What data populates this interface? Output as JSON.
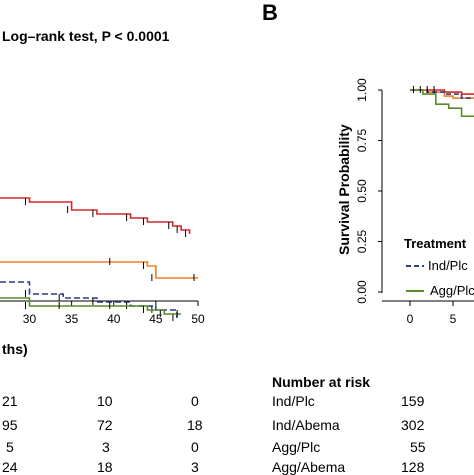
{
  "panel_b_label": "B",
  "left_panel": {
    "stat_title": "Log–rank test, P < 0.0001",
    "x_axis_fragment": "ths)",
    "risk_table_rows": [
      [
        "21",
        "10",
        "0"
      ],
      [
        "95",
        "72",
        "18"
      ],
      [
        "5",
        "3",
        "0"
      ],
      [
        "24",
        "18",
        "3"
      ]
    ]
  },
  "right_panel": {
    "ylabel": "Survival Probability",
    "legend_title": "Treatment",
    "legend_items": [
      "Ind/Plc",
      "Agg/Plc"
    ],
    "risk_header": "Number at risk",
    "risk_groups": [
      {
        "name": "Ind/Plc",
        "n": "159"
      },
      {
        "name": "Ind/Abema",
        "n": "302"
      },
      {
        "name": "Agg/Plc",
        "n": "55"
      },
      {
        "name": "Agg/Abema",
        "n": "128"
      }
    ]
  },
  "chart_data": [
    {
      "type": "line",
      "title": "Log–rank test, P < 0.0001",
      "xlabel": "ths)",
      "ylabel": "",
      "x_ticks": [
        30,
        35,
        40,
        45,
        50
      ],
      "xlim": [
        26.5,
        50
      ],
      "series": [
        {
          "color": "#d62728",
          "x": [
            26.5,
            30,
            35,
            38,
            42,
            44,
            47,
            48,
            49
          ],
          "y": [
            0.78,
            0.77,
            0.75,
            0.74,
            0.73,
            0.72,
            0.71,
            0.7,
            0.69
          ]
        },
        {
          "color": "#f07f2b",
          "x": [
            26.5,
            40,
            44,
            45,
            50
          ],
          "y": [
            0.62,
            0.62,
            0.61,
            0.58,
            0.58
          ]
        },
        {
          "color": "#2a3f8f",
          "dashed": true,
          "x": [
            26.5,
            30,
            34,
            38,
            42,
            45,
            47.5
          ],
          "y": [
            0.57,
            0.54,
            0.53,
            0.52,
            0.51,
            0.5,
            0.48
          ]
        },
        {
          "color": "#5a8a2a",
          "x": [
            26.5,
            30,
            34,
            40,
            44,
            46,
            48
          ],
          "y": [
            0.53,
            0.51,
            0.51,
            0.51,
            0.5,
            0.49,
            0.49
          ]
        }
      ],
      "risk_table": {
        "x": [
          30,
          40,
          50
        ],
        "rows": [
          [
            "21",
            "10",
            "0"
          ],
          [
            "95",
            "72",
            "18"
          ],
          [
            "5",
            "3",
            "0"
          ],
          [
            "24",
            "18",
            "3"
          ]
        ]
      }
    },
    {
      "type": "line",
      "title": "",
      "xlabel": "",
      "ylabel": "Survival Probability",
      "y_ticks": [
        "0.00",
        "0.25",
        "0.50",
        "0.75",
        "1.00"
      ],
      "x_ticks": [
        "0",
        "5"
      ],
      "ylim": [
        0,
        1.0
      ],
      "legend": {
        "title": "Treatment",
        "entries": [
          "Ind/Plc",
          "Agg/Plc"
        ],
        "placement": "bottom"
      },
      "series": [
        {
          "color": "#d62728",
          "x": [
            0,
            2,
            4,
            6,
            8
          ],
          "y": [
            1.0,
            1.0,
            0.99,
            0.98,
            0.97
          ]
        },
        {
          "color": "#f07f2b",
          "x": [
            0,
            2,
            4,
            5,
            8
          ],
          "y": [
            1.0,
            0.99,
            0.97,
            0.96,
            0.95
          ]
        },
        {
          "color": "#2a3f8f",
          "dashed": true,
          "x": [
            0,
            2,
            4,
            6,
            8
          ],
          "y": [
            1.0,
            0.99,
            0.98,
            0.96,
            0.95
          ]
        },
        {
          "color": "#5a8a2a",
          "x": [
            0,
            1.5,
            3,
            4.5,
            6,
            8
          ],
          "y": [
            1.0,
            0.98,
            0.93,
            0.91,
            0.87,
            0.86
          ]
        }
      ]
    }
  ]
}
